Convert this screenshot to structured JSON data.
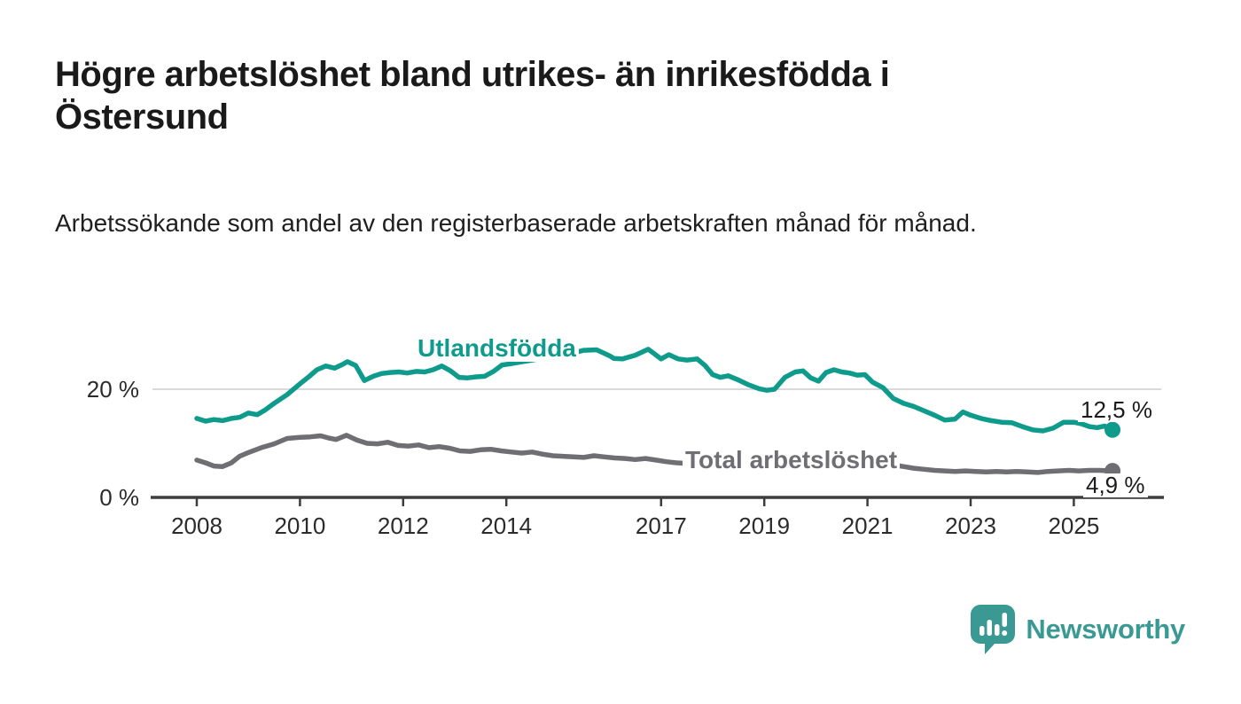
{
  "header": {
    "title": "Högre arbetslöshet bland utrikes- än inrikesfödda i Östersund",
    "subtitle": "Arbetssökande som andel av den registerbaserade arbetskraften månad för månad."
  },
  "chart_data": {
    "type": "line",
    "title": "Högre arbetslöshet bland utrikes- än inrikesfödda i Östersund",
    "xlabel": "",
    "ylabel": "",
    "unit": "%",
    "ylim": [
      0,
      30
    ],
    "xlim": [
      2007.3,
      2026.6
    ],
    "grid": "horizontal gridline at 20% only",
    "legend_position": "inline labels on lines",
    "yticks": [
      {
        "value": 0,
        "label": "0 %"
      },
      {
        "value": 20,
        "label": "20 %"
      }
    ],
    "xticks": [
      {
        "value": 2008,
        "label": "2008"
      },
      {
        "value": 2010,
        "label": "2010"
      },
      {
        "value": 2012,
        "label": "2012"
      },
      {
        "value": 2014,
        "label": "2014"
      },
      {
        "value": 2017,
        "label": "2017"
      },
      {
        "value": 2019,
        "label": "2019"
      },
      {
        "value": 2021,
        "label": "2021"
      },
      {
        "value": 2023,
        "label": "2023"
      },
      {
        "value": 2025,
        "label": "2025"
      }
    ],
    "series": [
      {
        "name": "Utlandsfödda",
        "color": "#0f9b8c",
        "end_label": "12,5 %",
        "end_value": 12.5,
        "points": [
          [
            2008.0,
            14.6
          ],
          [
            2008.17,
            14.1
          ],
          [
            2008.33,
            14.4
          ],
          [
            2008.5,
            14.2
          ],
          [
            2008.67,
            14.6
          ],
          [
            2008.83,
            14.8
          ],
          [
            2009.0,
            15.6
          ],
          [
            2009.17,
            15.3
          ],
          [
            2009.33,
            16.2
          ],
          [
            2009.5,
            17.4
          ],
          [
            2009.75,
            19.0
          ],
          [
            2010.0,
            21.0
          ],
          [
            2010.17,
            22.3
          ],
          [
            2010.33,
            23.6
          ],
          [
            2010.5,
            24.3
          ],
          [
            2010.67,
            23.9
          ],
          [
            2010.83,
            24.6
          ],
          [
            2010.92,
            25.1
          ],
          [
            2011.08,
            24.4
          ],
          [
            2011.25,
            21.6
          ],
          [
            2011.42,
            22.4
          ],
          [
            2011.58,
            22.9
          ],
          [
            2011.75,
            23.1
          ],
          [
            2011.92,
            23.2
          ],
          [
            2012.08,
            23.0
          ],
          [
            2012.25,
            23.3
          ],
          [
            2012.42,
            23.2
          ],
          [
            2012.58,
            23.6
          ],
          [
            2012.75,
            24.3
          ],
          [
            2012.92,
            23.4
          ],
          [
            2013.08,
            22.2
          ],
          [
            2013.25,
            22.1
          ],
          [
            2013.42,
            22.3
          ],
          [
            2013.58,
            22.4
          ],
          [
            2013.75,
            23.3
          ],
          [
            2013.92,
            24.5
          ],
          [
            2014.08,
            24.7
          ],
          [
            2014.25,
            25.0
          ],
          [
            2014.5,
            25.4
          ],
          [
            2014.75,
            25.8
          ],
          [
            2015.0,
            26.2
          ],
          [
            2015.25,
            26.6
          ],
          [
            2015.5,
            27.2
          ],
          [
            2015.75,
            27.3
          ],
          [
            2016.0,
            26.2
          ],
          [
            2016.08,
            25.7
          ],
          [
            2016.25,
            25.6
          ],
          [
            2016.5,
            26.3
          ],
          [
            2016.75,
            27.4
          ],
          [
            2016.92,
            26.2
          ],
          [
            2017.0,
            25.6
          ],
          [
            2017.15,
            26.4
          ],
          [
            2017.33,
            25.6
          ],
          [
            2017.5,
            25.4
          ],
          [
            2017.7,
            25.6
          ],
          [
            2017.85,
            24.4
          ],
          [
            2018.0,
            22.7
          ],
          [
            2018.15,
            22.2
          ],
          [
            2018.3,
            22.5
          ],
          [
            2018.5,
            21.7
          ],
          [
            2018.7,
            20.8
          ],
          [
            2018.9,
            20.1
          ],
          [
            2019.05,
            19.8
          ],
          [
            2019.2,
            20.0
          ],
          [
            2019.4,
            22.2
          ],
          [
            2019.6,
            23.2
          ],
          [
            2019.75,
            23.4
          ],
          [
            2019.9,
            22.1
          ],
          [
            2020.05,
            21.5
          ],
          [
            2020.2,
            23.1
          ],
          [
            2020.35,
            23.6
          ],
          [
            2020.5,
            23.2
          ],
          [
            2020.65,
            23.0
          ],
          [
            2020.8,
            22.6
          ],
          [
            2020.95,
            22.7
          ],
          [
            2021.1,
            21.3
          ],
          [
            2021.3,
            20.3
          ],
          [
            2021.5,
            18.3
          ],
          [
            2021.7,
            17.4
          ],
          [
            2021.9,
            16.8
          ],
          [
            2022.1,
            16.0
          ],
          [
            2022.3,
            15.2
          ],
          [
            2022.5,
            14.3
          ],
          [
            2022.7,
            14.5
          ],
          [
            2022.85,
            15.8
          ],
          [
            2023.0,
            15.2
          ],
          [
            2023.2,
            14.6
          ],
          [
            2023.4,
            14.2
          ],
          [
            2023.6,
            13.9
          ],
          [
            2023.8,
            13.8
          ],
          [
            2024.0,
            13.1
          ],
          [
            2024.2,
            12.5
          ],
          [
            2024.4,
            12.3
          ],
          [
            2024.6,
            12.8
          ],
          [
            2024.8,
            13.9
          ],
          [
            2025.0,
            13.9
          ],
          [
            2025.15,
            13.6
          ],
          [
            2025.3,
            13.1
          ],
          [
            2025.45,
            12.9
          ],
          [
            2025.6,
            13.2
          ],
          [
            2025.75,
            12.5
          ]
        ]
      },
      {
        "name": "Total arbetslöshet",
        "color": "#6e6e73",
        "end_label": "4,9 %",
        "end_value": 4.9,
        "points": [
          [
            2008.0,
            6.9
          ],
          [
            2008.17,
            6.4
          ],
          [
            2008.33,
            5.8
          ],
          [
            2008.5,
            5.7
          ],
          [
            2008.67,
            6.4
          ],
          [
            2008.83,
            7.6
          ],
          [
            2009.0,
            8.3
          ],
          [
            2009.25,
            9.2
          ],
          [
            2009.5,
            9.9
          ],
          [
            2009.75,
            10.9
          ],
          [
            2010.0,
            11.1
          ],
          [
            2010.2,
            11.2
          ],
          [
            2010.4,
            11.4
          ],
          [
            2010.55,
            11.0
          ],
          [
            2010.7,
            10.7
          ],
          [
            2010.9,
            11.5
          ],
          [
            2011.1,
            10.6
          ],
          [
            2011.3,
            10.0
          ],
          [
            2011.5,
            9.9
          ],
          [
            2011.7,
            10.2
          ],
          [
            2011.9,
            9.6
          ],
          [
            2012.1,
            9.5
          ],
          [
            2012.3,
            9.7
          ],
          [
            2012.5,
            9.2
          ],
          [
            2012.7,
            9.4
          ],
          [
            2012.9,
            9.1
          ],
          [
            2013.1,
            8.6
          ],
          [
            2013.3,
            8.5
          ],
          [
            2013.5,
            8.8
          ],
          [
            2013.7,
            8.9
          ],
          [
            2013.9,
            8.6
          ],
          [
            2014.1,
            8.4
          ],
          [
            2014.3,
            8.2
          ],
          [
            2014.5,
            8.4
          ],
          [
            2014.7,
            8.0
          ],
          [
            2014.9,
            7.7
          ],
          [
            2015.1,
            7.6
          ],
          [
            2015.3,
            7.5
          ],
          [
            2015.5,
            7.4
          ],
          [
            2015.7,
            7.7
          ],
          [
            2015.9,
            7.5
          ],
          [
            2016.1,
            7.3
          ],
          [
            2016.3,
            7.2
          ],
          [
            2016.5,
            7.0
          ],
          [
            2016.7,
            7.2
          ],
          [
            2016.9,
            6.9
          ],
          [
            2017.1,
            6.6
          ],
          [
            2017.3,
            6.4
          ],
          [
            2017.5,
            6.3
          ],
          [
            2017.7,
            6.2
          ],
          [
            2017.9,
            6.1
          ],
          [
            2018.1,
            5.9
          ],
          [
            2018.4,
            5.8
          ],
          [
            2018.7,
            5.7
          ],
          [
            2019.0,
            5.6
          ],
          [
            2019.3,
            5.7
          ],
          [
            2019.6,
            5.9
          ],
          [
            2019.9,
            6.1
          ],
          [
            2020.1,
            6.5
          ],
          [
            2020.3,
            7.3
          ],
          [
            2020.5,
            7.4
          ],
          [
            2020.7,
            7.2
          ],
          [
            2020.9,
            7.0
          ],
          [
            2021.1,
            6.7
          ],
          [
            2021.3,
            6.3
          ],
          [
            2021.5,
            6.0
          ],
          [
            2021.7,
            5.7
          ],
          [
            2021.9,
            5.4
          ],
          [
            2022.1,
            5.2
          ],
          [
            2022.3,
            5.0
          ],
          [
            2022.5,
            4.9
          ],
          [
            2022.7,
            4.8
          ],
          [
            2022.9,
            4.9
          ],
          [
            2023.1,
            4.8
          ],
          [
            2023.3,
            4.7
          ],
          [
            2023.5,
            4.8
          ],
          [
            2023.7,
            4.7
          ],
          [
            2023.9,
            4.8
          ],
          [
            2024.1,
            4.7
          ],
          [
            2024.3,
            4.6
          ],
          [
            2024.5,
            4.8
          ],
          [
            2024.7,
            4.9
          ],
          [
            2024.9,
            5.0
          ],
          [
            2025.1,
            4.9
          ],
          [
            2025.3,
            5.0
          ],
          [
            2025.5,
            5.0
          ],
          [
            2025.75,
            4.9
          ]
        ]
      }
    ],
    "style": {
      "axis_color": "#3d3d3d",
      "grid_color": "#d9d9d9",
      "tick_text_color": "#2b2b2b"
    }
  },
  "logo": {
    "text": "Newsworthy",
    "icon": "newsworthy-speech-bubble-bar-chart-icon",
    "color": "#3a9a93"
  }
}
